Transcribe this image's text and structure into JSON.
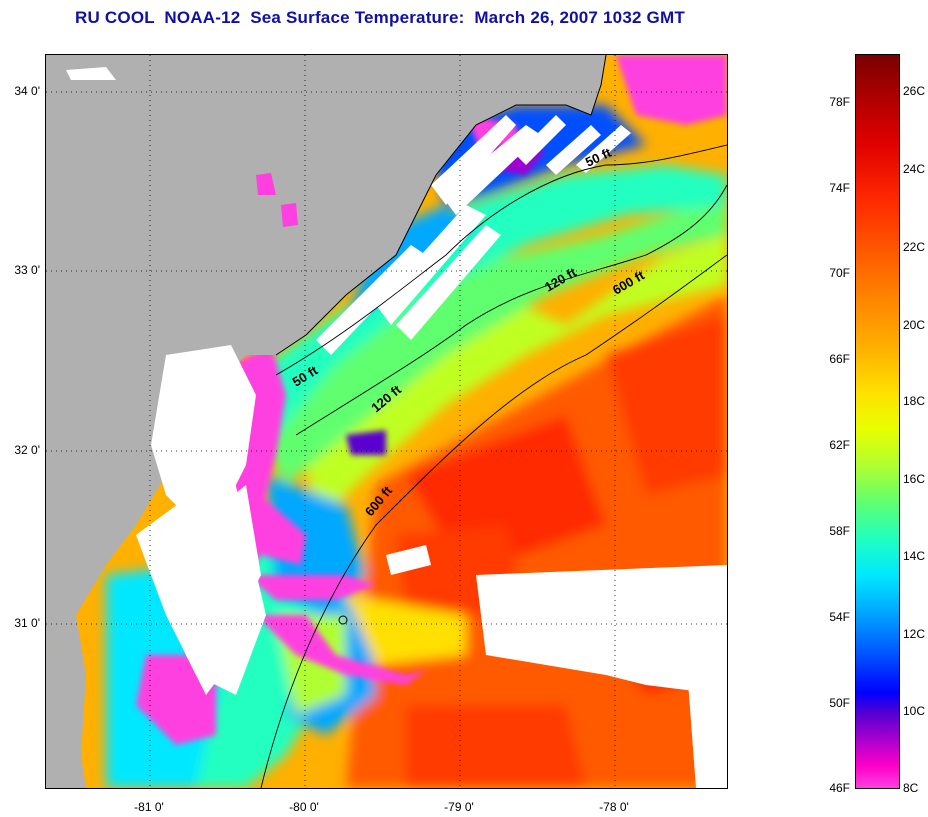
{
  "title": "RU COOL  NOAA-12  Sea Surface Temperature:  March 26, 2007 1032 GMT",
  "lat_ticks": [
    {
      "label": "34 0'",
      "lat": 34.0
    },
    {
      "label": "33 0'",
      "lat": 33.0
    },
    {
      "label": "32 0'",
      "lat": 32.0
    },
    {
      "label": "31 0'",
      "lat": 31.0
    }
  ],
  "lon_ticks": [
    {
      "label": "-81 0'",
      "lon": -81.0
    },
    {
      "label": "-80 0'",
      "lon": -80.0
    },
    {
      "label": "-79 0'",
      "lon": -79.0
    },
    {
      "label": "-78 0'",
      "lon": -78.0
    }
  ],
  "depth_contours": [
    {
      "label": "50 ft"
    },
    {
      "label": "50 ft"
    },
    {
      "label": "120 ft"
    },
    {
      "label": "120 ft"
    },
    {
      "label": "600 ft"
    },
    {
      "label": "600 ft"
    }
  ],
  "colorbar": {
    "fahrenheit": [
      "78F",
      "74F",
      "70F",
      "66F",
      "62F",
      "58F",
      "54F",
      "50F",
      "46F"
    ],
    "celsius": [
      "26C",
      "24C",
      "22C",
      "20C",
      "18C",
      "16C",
      "14C",
      "12C",
      "10C",
      "8C"
    ],
    "min_f": 46,
    "max_f": 80.6,
    "colors": {
      "hot": "#b00000",
      "warm": "#ff5a00",
      "mid": "#ffe000",
      "cool": "#20ffc0",
      "cold": "#0000ff",
      "coldest": "#ff40e0"
    }
  },
  "colors": {
    "land": "#b0b0b0",
    "clouds": "#ffffff",
    "title": "#1010a8"
  }
}
